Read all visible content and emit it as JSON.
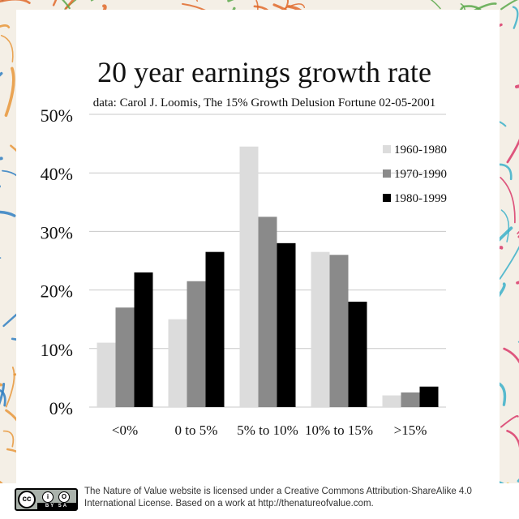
{
  "chart_data": {
    "type": "bar",
    "title": "20 year earnings growth rate",
    "subtitle": "data: Carol J. Loomis, The 15% Growth Delusion Fortune 02-05-2001",
    "categories": [
      "<0%",
      "0 to 5%",
      "5% to 10%",
      "10% to 15%",
      ">15%"
    ],
    "series": [
      {
        "name": "1960-1980",
        "color": "#dcdcdc",
        "values": [
          11,
          15,
          44.5,
          26.5,
          2
        ]
      },
      {
        "name": "1970-1990",
        "color": "#8a8a8a",
        "values": [
          17,
          21.5,
          32.5,
          26,
          2.5
        ]
      },
      {
        "name": "1980-1999",
        "color": "#000000",
        "values": [
          23,
          26.5,
          28,
          18,
          3.5
        ]
      }
    ],
    "ylim": [
      0,
      50
    ],
    "yticks": [
      "0%",
      "10%",
      "20%",
      "30%",
      "40%",
      "50%"
    ],
    "grid": true,
    "legend": "top-right"
  },
  "footer": {
    "license_text": "The Nature of Value website is licensed under a Creative Commons Attribution-ShareAlike 4.0 International License.  Based on a work at http://thenatureofvalue.com.",
    "badge": {
      "cc": "cc",
      "by": "i",
      "sa": "O",
      "strip": "BY SA"
    }
  }
}
